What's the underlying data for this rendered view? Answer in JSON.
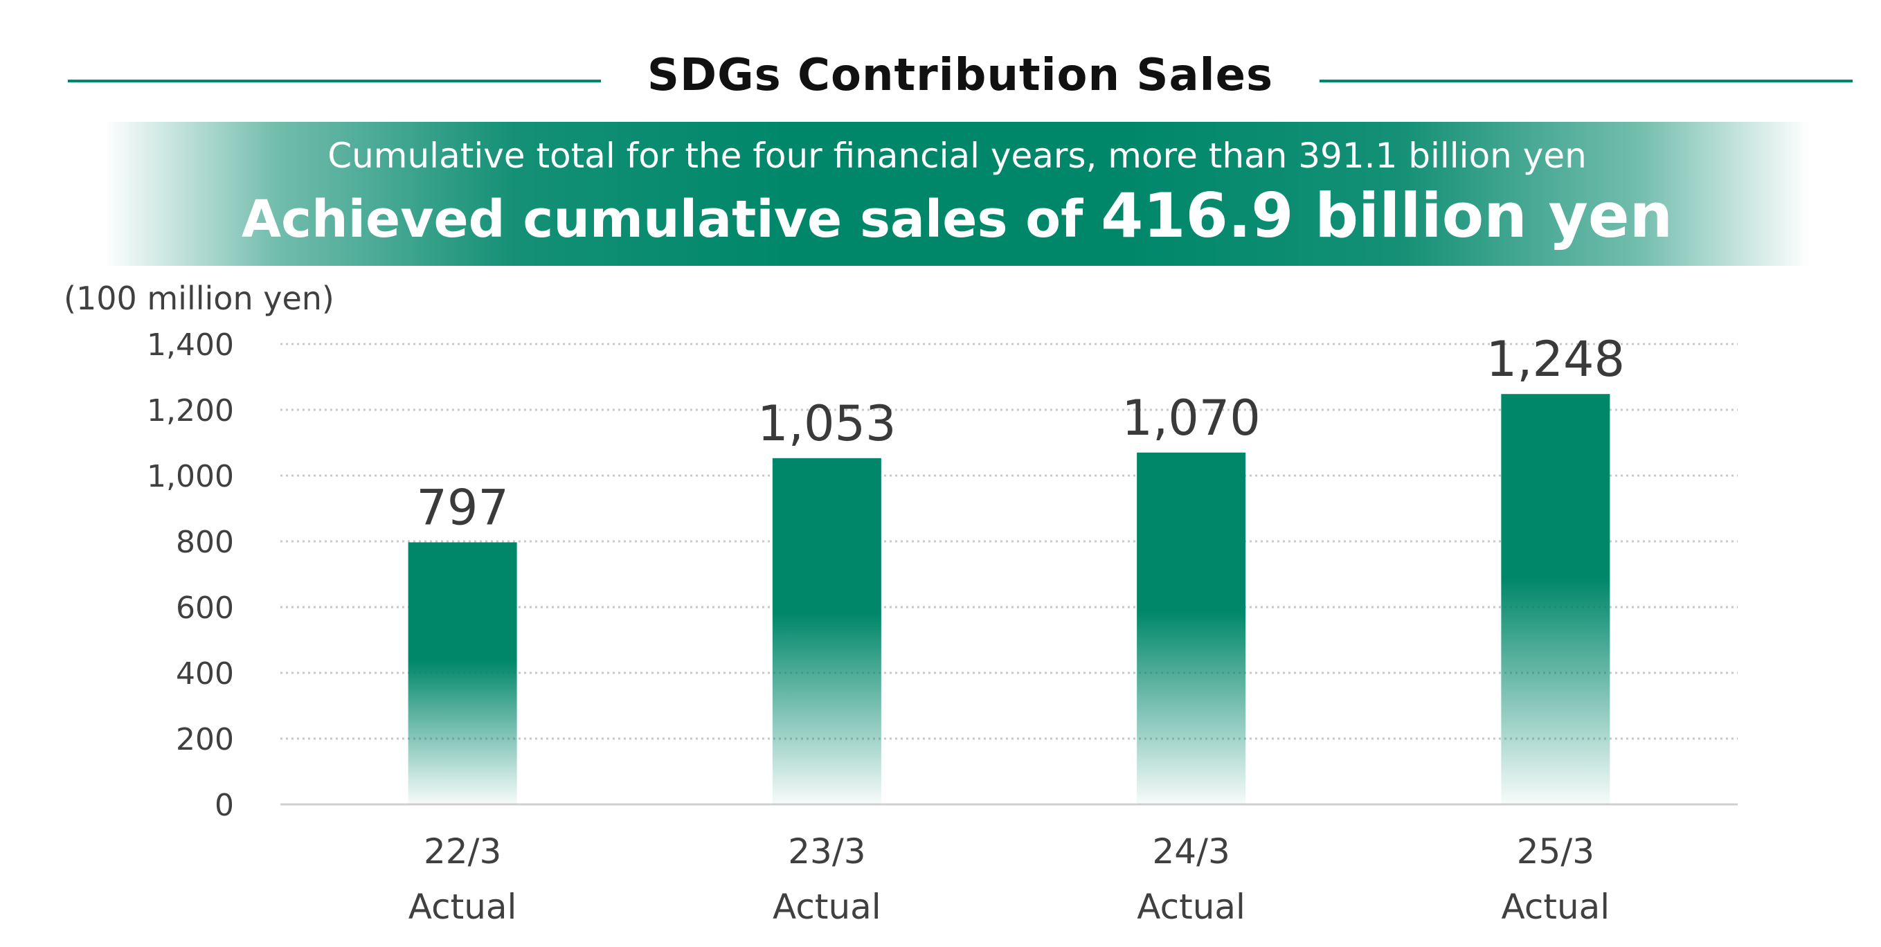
{
  "header": {
    "title": "SDGs Contribution Sales",
    "subtitle": "Cumulative total for the four financial years, more than 391.1 billion yen",
    "headline_prefix": "Achieved cumulative sales of ",
    "headline_value": "416.9 billion yen"
  },
  "colors": {
    "accent": "#00876a",
    "gridline": "#c8c8c8",
    "axis": "#d0d0d0",
    "text": "#404040"
  },
  "chart_data": {
    "type": "bar",
    "unit_label": "(100 million yen)",
    "categories": [
      "22/3\nActual",
      "23/3\nActual",
      "24/3\nActual",
      "25/3\nActual"
    ],
    "category_lines": [
      [
        "22/3",
        "Actual"
      ],
      [
        "23/3",
        "Actual"
      ],
      [
        "24/3",
        "Actual"
      ],
      [
        "25/3",
        "Actual"
      ]
    ],
    "values": [
      797,
      1053,
      1070,
      1248
    ],
    "value_labels": [
      "797",
      "1,053",
      "1,070",
      "1,248"
    ],
    "ylim": [
      0,
      1400
    ],
    "y_ticks": [
      0,
      200,
      400,
      600,
      800,
      1000,
      1200,
      1400
    ],
    "y_tick_labels": [
      "0",
      "200",
      "400",
      "600",
      "800",
      "1,000",
      "1,200",
      "1,400"
    ],
    "grid": true,
    "grid_style": "dotted",
    "legend": "none"
  }
}
